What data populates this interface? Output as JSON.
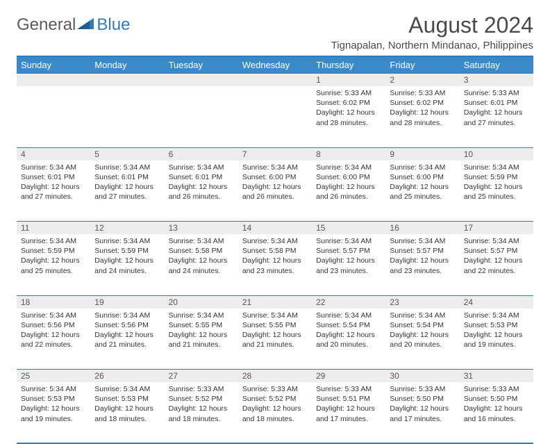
{
  "logo": {
    "general": "General",
    "blue": "Blue"
  },
  "title": "August 2024",
  "location": "Tignapalan, Northern Mindanao, Philippines",
  "headerColor": "#3a8ac9",
  "borderColor": "#2f7bbf",
  "stripeColor": "#ededed",
  "dayHeaders": [
    "Sunday",
    "Monday",
    "Tuesday",
    "Wednesday",
    "Thursday",
    "Friday",
    "Saturday"
  ],
  "weeks": [
    {
      "nums": [
        "",
        "",
        "",
        "",
        "1",
        "2",
        "3"
      ],
      "details": [
        "",
        "",
        "",
        "",
        "Sunrise: 5:33 AM\nSunset: 6:02 PM\nDaylight: 12 hours and 28 minutes.",
        "Sunrise: 5:33 AM\nSunset: 6:02 PM\nDaylight: 12 hours and 28 minutes.",
        "Sunrise: 5:33 AM\nSunset: 6:01 PM\nDaylight: 12 hours and 27 minutes."
      ]
    },
    {
      "nums": [
        "4",
        "5",
        "6",
        "7",
        "8",
        "9",
        "10"
      ],
      "details": [
        "Sunrise: 5:34 AM\nSunset: 6:01 PM\nDaylight: 12 hours and 27 minutes.",
        "Sunrise: 5:34 AM\nSunset: 6:01 PM\nDaylight: 12 hours and 27 minutes.",
        "Sunrise: 5:34 AM\nSunset: 6:01 PM\nDaylight: 12 hours and 26 minutes.",
        "Sunrise: 5:34 AM\nSunset: 6:00 PM\nDaylight: 12 hours and 26 minutes.",
        "Sunrise: 5:34 AM\nSunset: 6:00 PM\nDaylight: 12 hours and 26 minutes.",
        "Sunrise: 5:34 AM\nSunset: 6:00 PM\nDaylight: 12 hours and 25 minutes.",
        "Sunrise: 5:34 AM\nSunset: 5:59 PM\nDaylight: 12 hours and 25 minutes."
      ]
    },
    {
      "nums": [
        "11",
        "12",
        "13",
        "14",
        "15",
        "16",
        "17"
      ],
      "details": [
        "Sunrise: 5:34 AM\nSunset: 5:59 PM\nDaylight: 12 hours and 25 minutes.",
        "Sunrise: 5:34 AM\nSunset: 5:59 PM\nDaylight: 12 hours and 24 minutes.",
        "Sunrise: 5:34 AM\nSunset: 5:58 PM\nDaylight: 12 hours and 24 minutes.",
        "Sunrise: 5:34 AM\nSunset: 5:58 PM\nDaylight: 12 hours and 23 minutes.",
        "Sunrise: 5:34 AM\nSunset: 5:57 PM\nDaylight: 12 hours and 23 minutes.",
        "Sunrise: 5:34 AM\nSunset: 5:57 PM\nDaylight: 12 hours and 23 minutes.",
        "Sunrise: 5:34 AM\nSunset: 5:57 PM\nDaylight: 12 hours and 22 minutes."
      ]
    },
    {
      "nums": [
        "18",
        "19",
        "20",
        "21",
        "22",
        "23",
        "24"
      ],
      "details": [
        "Sunrise: 5:34 AM\nSunset: 5:56 PM\nDaylight: 12 hours and 22 minutes.",
        "Sunrise: 5:34 AM\nSunset: 5:56 PM\nDaylight: 12 hours and 21 minutes.",
        "Sunrise: 5:34 AM\nSunset: 5:55 PM\nDaylight: 12 hours and 21 minutes.",
        "Sunrise: 5:34 AM\nSunset: 5:55 PM\nDaylight: 12 hours and 21 minutes.",
        "Sunrise: 5:34 AM\nSunset: 5:54 PM\nDaylight: 12 hours and 20 minutes.",
        "Sunrise: 5:34 AM\nSunset: 5:54 PM\nDaylight: 12 hours and 20 minutes.",
        "Sunrise: 5:34 AM\nSunset: 5:53 PM\nDaylight: 12 hours and 19 minutes."
      ]
    },
    {
      "nums": [
        "25",
        "26",
        "27",
        "28",
        "29",
        "30",
        "31"
      ],
      "details": [
        "Sunrise: 5:34 AM\nSunset: 5:53 PM\nDaylight: 12 hours and 19 minutes.",
        "Sunrise: 5:34 AM\nSunset: 5:53 PM\nDaylight: 12 hours and 18 minutes.",
        "Sunrise: 5:33 AM\nSunset: 5:52 PM\nDaylight: 12 hours and 18 minutes.",
        "Sunrise: 5:33 AM\nSunset: 5:52 PM\nDaylight: 12 hours and 18 minutes.",
        "Sunrise: 5:33 AM\nSunset: 5:51 PM\nDaylight: 12 hours and 17 minutes.",
        "Sunrise: 5:33 AM\nSunset: 5:50 PM\nDaylight: 12 hours and 17 minutes.",
        "Sunrise: 5:33 AM\nSunset: 5:50 PM\nDaylight: 12 hours and 16 minutes."
      ]
    }
  ]
}
